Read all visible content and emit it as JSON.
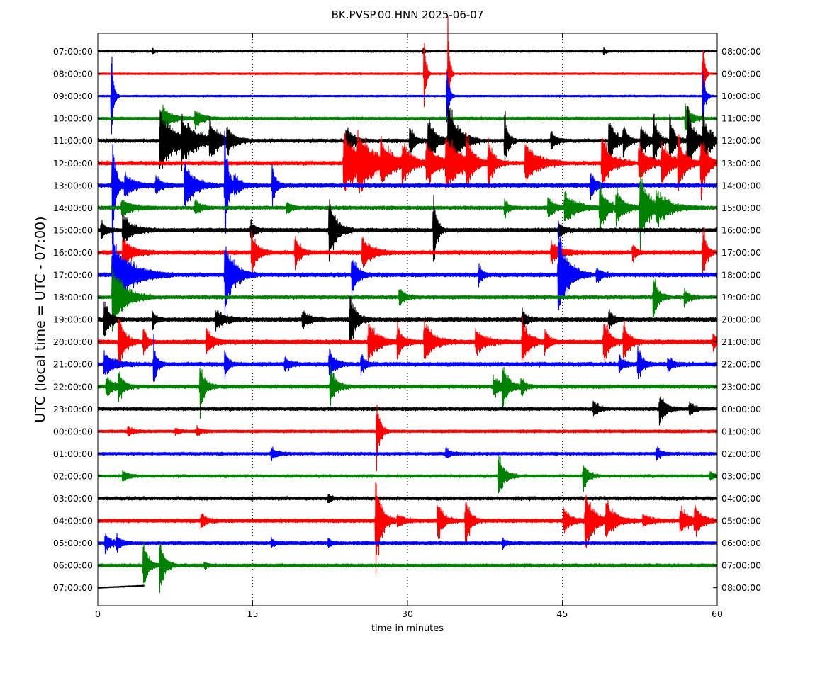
{
  "chart_data": {
    "type": "line",
    "title": "BK.PVSP.00.HNN 2025-06-07",
    "xlabel": "time in minutes",
    "ylabel": "UTC (local time = UTC - 07:00)",
    "xlim": [
      0,
      60
    ],
    "x_ticks": [
      "0",
      "15",
      "30",
      "45",
      "60"
    ],
    "x_tick_values": [
      0,
      15,
      30,
      45,
      60
    ],
    "grid": "vertical dotted lines at 15, 30, 45",
    "legend": "none",
    "colors": [
      "#000000",
      "#ff0000",
      "#0000ff",
      "#008000"
    ],
    "rows_left": [
      "07:00:00",
      "08:00:00",
      "09:00:00",
      "10:00:00",
      "11:00:00",
      "12:00:00",
      "13:00:00",
      "14:00:00",
      "15:00:00",
      "16:00:00",
      "17:00:00",
      "18:00:00",
      "19:00:00",
      "20:00:00",
      "21:00:00",
      "22:00:00",
      "23:00:00",
      "00:00:00",
      "01:00:00",
      "02:00:00",
      "03:00:00",
      "04:00:00",
      "05:00:00",
      "06:00:00",
      "07:00:00"
    ],
    "rows_right": [
      "08:00:00",
      "09:00:00",
      "10:00:00",
      "11:00:00",
      "12:00:00",
      "13:00:00",
      "14:00:00",
      "15:00:00",
      "16:00:00",
      "17:00:00",
      "18:00:00",
      "19:00:00",
      "20:00:00",
      "21:00:00",
      "22:00:00",
      "23:00:00",
      "00:00:00",
      "01:00:00",
      "02:00:00",
      "03:00:00",
      "04:00:00",
      "05:00:00",
      "06:00:00",
      "07:00:00",
      "08:00:00"
    ],
    "row_noise": [
      1.5,
      1.5,
      1.5,
      2.2,
      2.8,
      3.0,
      3.0,
      2.6,
      3.0,
      3.0,
      3.0,
      2.6,
      3.0,
      3.2,
      3.0,
      2.6,
      2.4,
      2.2,
      2.2,
      2.2,
      2.6,
      2.8,
      2.6,
      2.4,
      1.0
    ],
    "last_row_end_minute": 4.5,
    "events": [
      [
        0,
        5.3,
        4,
        0.2
      ],
      [
        0,
        31.5,
        4,
        0.2
      ],
      [
        0,
        49.0,
        6,
        0.2
      ],
      [
        1,
        31.6,
        85,
        0.15
      ],
      [
        1,
        33.9,
        95,
        0.15
      ],
      [
        1,
        58.6,
        70,
        0.15
      ],
      [
        2,
        1.3,
        70,
        0.2
      ],
      [
        2,
        33.8,
        55,
        0.2
      ],
      [
        2,
        58.6,
        45,
        0.2
      ],
      [
        3,
        6.2,
        20,
        0.8
      ],
      [
        3,
        9.4,
        15,
        0.6
      ],
      [
        3,
        56.9,
        25,
        0.5
      ],
      [
        4,
        6.0,
        45,
        1.5
      ],
      [
        4,
        8.1,
        30,
        1.2
      ],
      [
        4,
        10.8,
        25,
        1.0
      ],
      [
        4,
        12.5,
        20,
        0.5
      ],
      [
        4,
        24.0,
        22,
        0.6
      ],
      [
        4,
        30.2,
        25,
        0.4
      ],
      [
        4,
        32.0,
        40,
        0.6
      ],
      [
        4,
        33.9,
        75,
        0.8
      ],
      [
        4,
        39.4,
        45,
        0.3
      ],
      [
        4,
        43.9,
        15,
        0.4
      ],
      [
        4,
        49.5,
        40,
        0.5
      ],
      [
        4,
        50.9,
        25,
        0.4
      ],
      [
        4,
        52.6,
        30,
        0.5
      ],
      [
        4,
        53.8,
        45,
        0.4
      ],
      [
        4,
        55.4,
        35,
        0.4
      ],
      [
        4,
        57.1,
        55,
        0.6
      ],
      [
        4,
        58.6,
        60,
        0.3
      ],
      [
        4,
        59.3,
        15,
        0.4
      ],
      [
        5,
        23.8,
        50,
        1.5
      ],
      [
        5,
        25.2,
        35,
        1.2
      ],
      [
        5,
        27.4,
        30,
        1.0
      ],
      [
        5,
        29.5,
        30,
        0.8
      ],
      [
        5,
        31.8,
        35,
        1.0
      ],
      [
        5,
        33.7,
        45,
        1.2
      ],
      [
        5,
        35.7,
        40,
        0.5
      ],
      [
        5,
        37.8,
        40,
        0.5
      ],
      [
        5,
        41.4,
        35,
        1.0
      ],
      [
        5,
        48.8,
        40,
        0.8
      ],
      [
        5,
        52.4,
        30,
        0.8
      ],
      [
        5,
        54.6,
        35,
        0.8
      ],
      [
        5,
        56.2,
        40,
        0.6
      ],
      [
        5,
        58.4,
        45,
        0.6
      ],
      [
        6,
        1.4,
        85,
        0.3
      ],
      [
        6,
        2.6,
        20,
        0.8
      ],
      [
        6,
        5.6,
        15,
        0.5
      ],
      [
        6,
        8.4,
        40,
        0.8
      ],
      [
        6,
        12.3,
        90,
        0.3
      ],
      [
        6,
        13.2,
        15,
        0.6
      ],
      [
        6,
        16.9,
        35,
        0.3
      ],
      [
        6,
        47.7,
        20,
        0.5
      ],
      [
        7,
        2.3,
        15,
        0.8
      ],
      [
        7,
        9.4,
        12,
        0.5
      ],
      [
        7,
        18.3,
        10,
        0.4
      ],
      [
        7,
        39.4,
        15,
        0.3
      ],
      [
        7,
        43.6,
        20,
        0.5
      ],
      [
        7,
        45.2,
        25,
        1.0
      ],
      [
        7,
        48.6,
        40,
        0.6
      ],
      [
        7,
        50.2,
        25,
        0.8
      ],
      [
        7,
        52.5,
        60,
        0.8
      ],
      [
        7,
        54.1,
        20,
        1.2
      ],
      [
        8,
        0.3,
        12,
        0.5
      ],
      [
        8,
        2.4,
        25,
        0.8
      ],
      [
        8,
        14.8,
        15,
        0.4
      ],
      [
        8,
        22.4,
        55,
        0.6
      ],
      [
        8,
        32.5,
        65,
        0.3
      ],
      [
        8,
        44.6,
        15,
        0.4
      ],
      [
        9,
        2.4,
        25,
        0.8
      ],
      [
        9,
        14.9,
        35,
        0.5
      ],
      [
        9,
        19.1,
        30,
        0.4
      ],
      [
        9,
        25.6,
        25,
        0.8
      ],
      [
        9,
        43.9,
        15,
        0.8
      ],
      [
        9,
        51.8,
        15,
        0.3
      ],
      [
        9,
        58.6,
        50,
        0.3
      ],
      [
        10,
        1.4,
        60,
        1.5
      ],
      [
        10,
        12.3,
        55,
        0.8
      ],
      [
        10,
        24.6,
        35,
        0.5
      ],
      [
        10,
        36.9,
        18,
        0.3
      ],
      [
        10,
        44.6,
        75,
        0.8
      ],
      [
        10,
        48.3,
        14,
        0.4
      ],
      [
        11,
        1.4,
        55,
        1.0
      ],
      [
        11,
        29.2,
        14,
        0.5
      ],
      [
        11,
        53.8,
        40,
        0.4
      ],
      [
        11,
        56.8,
        12,
        0.4
      ],
      [
        12,
        0.6,
        30,
        0.5
      ],
      [
        12,
        5.3,
        15,
        0.3
      ],
      [
        12,
        11.4,
        14,
        0.8
      ],
      [
        12,
        19.8,
        14,
        0.6
      ],
      [
        12,
        24.4,
        45,
        0.5
      ],
      [
        12,
        41.1,
        15,
        0.4
      ],
      [
        12,
        49.5,
        15,
        0.4
      ],
      [
        13,
        2.0,
        50,
        0.5
      ],
      [
        13,
        4.4,
        25,
        0.3
      ],
      [
        13,
        10.5,
        25,
        0.5
      ],
      [
        13,
        26.2,
        30,
        0.8
      ],
      [
        13,
        29.0,
        25,
        0.5
      ],
      [
        13,
        31.6,
        35,
        0.8
      ],
      [
        13,
        36.6,
        20,
        0.8
      ],
      [
        13,
        41.1,
        35,
        0.6
      ],
      [
        13,
        43.3,
        20,
        0.4
      ],
      [
        13,
        49.0,
        40,
        0.5
      ],
      [
        13,
        50.9,
        35,
        0.5
      ],
      [
        13,
        59.6,
        15,
        0.3
      ],
      [
        14,
        0.6,
        20,
        0.8
      ],
      [
        14,
        5.4,
        35,
        0.3
      ],
      [
        14,
        12.3,
        25,
        0.3
      ],
      [
        14,
        18.1,
        12,
        0.4
      ],
      [
        14,
        22.4,
        25,
        0.5
      ],
      [
        14,
        25.5,
        15,
        0.4
      ],
      [
        14,
        50.5,
        14,
        0.4
      ],
      [
        14,
        52.3,
        28,
        0.4
      ],
      [
        14,
        55.2,
        12,
        0.4
      ],
      [
        15,
        0.8,
        15,
        0.8
      ],
      [
        15,
        2.0,
        25,
        0.4
      ],
      [
        15,
        9.9,
        40,
        0.4
      ],
      [
        15,
        22.5,
        30,
        0.5
      ],
      [
        15,
        38.3,
        15,
        0.8
      ],
      [
        15,
        39.2,
        30,
        0.5
      ],
      [
        15,
        41.0,
        14,
        0.4
      ],
      [
        16,
        48.0,
        14,
        0.4
      ],
      [
        16,
        54.4,
        25,
        0.5
      ],
      [
        16,
        57.3,
        12,
        0.4
      ],
      [
        17,
        2.9,
        8,
        0.4
      ],
      [
        17,
        7.5,
        6,
        0.3
      ],
      [
        17,
        9.6,
        8,
        0.3
      ],
      [
        17,
        27.0,
        55,
        0.3
      ],
      [
        18,
        16.8,
        10,
        0.5
      ],
      [
        18,
        33.7,
        8,
        0.4
      ],
      [
        18,
        54.1,
        10,
        0.4
      ],
      [
        19,
        2.4,
        10,
        0.4
      ],
      [
        19,
        38.8,
        35,
        0.5
      ],
      [
        19,
        47.0,
        25,
        0.4
      ],
      [
        19,
        59.3,
        8,
        0.4
      ],
      [
        20,
        22.3,
        6,
        0.3
      ],
      [
        21,
        10.0,
        12,
        0.4
      ],
      [
        21,
        26.9,
        80,
        0.5
      ],
      [
        21,
        29.0,
        10,
        0.6
      ],
      [
        21,
        32.9,
        30,
        0.5
      ],
      [
        21,
        35.6,
        45,
        0.4
      ],
      [
        21,
        45.1,
        20,
        0.6
      ],
      [
        21,
        47.2,
        45,
        0.8
      ],
      [
        21,
        49.2,
        30,
        0.8
      ],
      [
        21,
        52.8,
        10,
        0.6
      ],
      [
        21,
        56.4,
        20,
        0.8
      ],
      [
        21,
        57.8,
        20,
        0.6
      ],
      [
        22,
        0.7,
        15,
        0.5
      ],
      [
        22,
        1.8,
        12,
        0.4
      ],
      [
        22,
        16.8,
        8,
        0.3
      ],
      [
        22,
        22.3,
        8,
        0.3
      ],
      [
        22,
        39.2,
        8,
        0.3
      ],
      [
        23,
        4.4,
        45,
        0.4
      ],
      [
        23,
        6.0,
        50,
        0.4
      ],
      [
        23,
        10.3,
        5,
        0.3
      ]
    ]
  }
}
